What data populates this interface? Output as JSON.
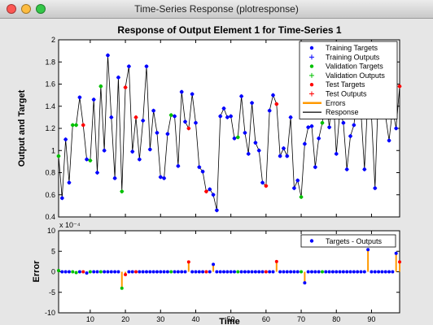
{
  "window": {
    "title": "Time-Series Response (plotresponse)",
    "buttons": [
      "close",
      "minimize",
      "maximize"
    ]
  },
  "chart_data": [
    {
      "type": "line",
      "title": "Response of Output Element 1 for Time-Series 1",
      "xlabel": "",
      "ylabel": "Output and Target",
      "xlim": [
        1,
        98
      ],
      "ylim": [
        0.4,
        2.0
      ],
      "y_ticks": [
        0.4,
        0.6,
        0.8,
        1.0,
        1.2,
        1.4,
        1.6,
        1.8,
        2.0
      ],
      "y_tick_labels": [
        "0.4",
        "0.6",
        "0.8",
        "1",
        "1.2",
        "1.4",
        "1.6",
        "1.8",
        "2"
      ],
      "legend_position": "top-right",
      "legend": [
        {
          "label": "Training Targets",
          "marker": "dot",
          "color": "#0000ff"
        },
        {
          "label": "Training Outputs",
          "marker": "plus",
          "color": "#0000ff"
        },
        {
          "label": "Validation Targets",
          "marker": "dot",
          "color": "#00c000"
        },
        {
          "label": "Validation Outputs",
          "marker": "plus",
          "color": "#00c000"
        },
        {
          "label": "Test Targets",
          "marker": "dot",
          "color": "#ff0000"
        },
        {
          "label": "Test Outputs",
          "marker": "plus",
          "color": "#ff0000"
        },
        {
          "label": "Errors",
          "marker": "line",
          "color": "#ff9900"
        },
        {
          "label": "Response",
          "marker": "line",
          "color": "#000000"
        }
      ],
      "x": [
        1,
        2,
        3,
        4,
        5,
        6,
        7,
        8,
        9,
        10,
        11,
        12,
        13,
        14,
        15,
        16,
        17,
        18,
        19,
        20,
        21,
        22,
        23,
        24,
        25,
        26,
        27,
        28,
        29,
        30,
        31,
        32,
        33,
        34,
        35,
        36,
        37,
        38,
        39,
        40,
        41,
        42,
        43,
        44,
        45,
        46,
        47,
        48,
        49,
        50,
        51,
        52,
        53,
        54,
        55,
        56,
        57,
        58,
        59,
        60,
        61,
        62,
        63,
        64,
        65,
        66,
        67,
        68,
        69,
        70,
        71,
        72,
        73,
        74,
        75,
        76,
        77,
        78,
        79,
        80,
        81,
        82,
        83,
        84,
        85,
        86,
        87,
        88,
        89,
        90,
        91,
        92,
        93,
        94,
        95,
        96,
        97,
        98
      ],
      "series": [
        {
          "name": "Response",
          "values": [
            0.95,
            0.57,
            1.1,
            0.71,
            1.23,
            1.23,
            1.48,
            1.23,
            0.92,
            0.91,
            1.46,
            0.8,
            1.58,
            1.0,
            1.86,
            1.3,
            0.75,
            1.66,
            0.63,
            1.57,
            1.76,
            0.99,
            1.3,
            0.92,
            1.27,
            1.76,
            1.01,
            1.36,
            1.16,
            0.76,
            0.75,
            1.15,
            1.32,
            1.31,
            0.86,
            1.53,
            1.26,
            1.2,
            1.51,
            1.25,
            0.85,
            0.81,
            0.63,
            0.65,
            0.6,
            0.46,
            1.31,
            1.38,
            1.3,
            1.31,
            1.11,
            1.12,
            1.49,
            1.16,
            0.97,
            1.43,
            1.07,
            1.0,
            0.71,
            0.68,
            1.36,
            1.5,
            1.42,
            0.95,
            1.02,
            0.95,
            1.3,
            0.66,
            0.73,
            0.58,
            1.06,
            1.21,
            1.22,
            0.85,
            1.11,
            1.25,
            1.48,
            1.21,
            1.57,
            0.97,
            1.36,
            1.25,
            0.83,
            1.13,
            1.23,
            1.51,
            1.35,
            0.83,
            1.51,
            1.31,
            0.66,
            1.58,
            1.42,
            1.31,
            1.09,
            1.38,
            1.2,
            1.58
          ]
        },
        {
          "name": "Targets - Outputs",
          "values": [
            0.3,
            0,
            0,
            0,
            0,
            -0.2,
            0,
            0,
            -0.3,
            0,
            0,
            0,
            0,
            0,
            0,
            0,
            0,
            0,
            -4.0,
            -0.7,
            0,
            0,
            0,
            0,
            0,
            0,
            0,
            0,
            0,
            0,
            0,
            0,
            0,
            0,
            0,
            0,
            0,
            2.4,
            0,
            0,
            0,
            0,
            0,
            0,
            1.8,
            0,
            0,
            0,
            0,
            0,
            0,
            0,
            0,
            0,
            0,
            0,
            0,
            0,
            0,
            0,
            0,
            0,
            2.5,
            0,
            0,
            0,
            0,
            0,
            0,
            0,
            -2.7,
            0,
            0,
            0,
            0,
            0,
            0,
            0,
            0,
            0,
            0,
            0,
            0,
            0,
            0,
            0,
            0,
            0,
            5.4,
            0,
            0,
            0,
            0,
            0,
            0,
            0,
            4.5,
            2.4
          ]
        }
      ],
      "kinds": [
        "val",
        "tr",
        "tr",
        "tr",
        "val",
        "val",
        "tr",
        "test",
        "tr",
        "val",
        "tr",
        "tr",
        "val",
        "tr",
        "tr",
        "tr",
        "tr",
        "tr",
        "val",
        "test",
        "tr",
        "tr",
        "test",
        "tr",
        "tr",
        "tr",
        "tr",
        "tr",
        "tr",
        "tr",
        "tr",
        "tr",
        "val",
        "tr",
        "tr",
        "tr",
        "tr",
        "test",
        "tr",
        "tr",
        "tr",
        "tr",
        "test",
        "tr",
        "tr",
        "tr",
        "tr",
        "tr",
        "tr",
        "tr",
        "tr",
        "val",
        "tr",
        "tr",
        "tr",
        "tr",
        "tr",
        "tr",
        "tr",
        "test",
        "tr",
        "tr",
        "test",
        "tr",
        "tr",
        "tr",
        "tr",
        "tr",
        "tr",
        "val",
        "tr",
        "tr",
        "tr",
        "tr",
        "tr",
        "val",
        "tr",
        "tr",
        "tr",
        "tr",
        "tr",
        "tr",
        "tr",
        "tr",
        "tr",
        "tr",
        "tr",
        "tr",
        "tr",
        "tr",
        "tr",
        "tr",
        "tr",
        "tr",
        "tr",
        "tr",
        "tr",
        "test"
      ]
    },
    {
      "type": "line",
      "title": "",
      "xlabel": "Time",
      "ylabel": "Error",
      "exponent_label": "x 10⁻⁴",
      "xlim": [
        1,
        98
      ],
      "ylim": [
        -10,
        10
      ],
      "x_ticks": [
        10,
        20,
        30,
        40,
        50,
        60,
        70,
        80,
        90
      ],
      "y_ticks": [
        -10,
        -5,
        0,
        5,
        10
      ],
      "legend_position": "top-right",
      "legend": [
        {
          "label": "Targets - Outputs",
          "marker": "dot",
          "color": "#0000ff"
        }
      ]
    }
  ],
  "colors": {
    "train": "#0000ff",
    "val": "#00c000",
    "test": "#ff0000",
    "error": "#ff9900",
    "response": "#000000"
  }
}
